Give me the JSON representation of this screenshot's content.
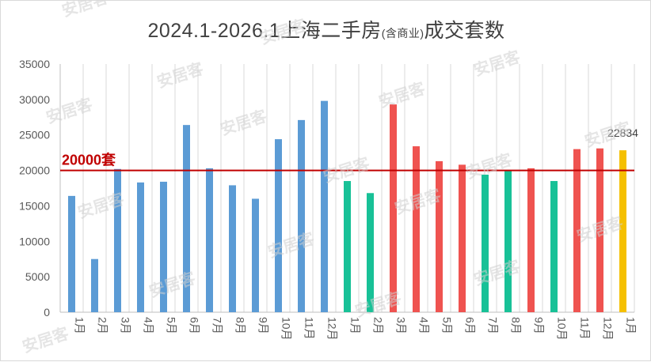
{
  "chart_data": {
    "type": "bar",
    "title_main": "2024.1-2026.1上海二手房",
    "title_small": "(含商业)",
    "title_tail": "成交套数",
    "categories": [
      "1月",
      "2月",
      "3月",
      "4月",
      "5月",
      "6月",
      "7月",
      "8月",
      "9月",
      "10月",
      "11月",
      "12月",
      "1月",
      "2月",
      "3月",
      "4月",
      "5月",
      "6月",
      "7月",
      "8月",
      "9月",
      "10月",
      "11月",
      "12月",
      "1月"
    ],
    "values": [
      16400,
      7500,
      20200,
      18300,
      18400,
      26400,
      20300,
      17900,
      16000,
      24400,
      27100,
      29800,
      18500,
      16800,
      29300,
      23400,
      21300,
      20800,
      19400,
      20000,
      20300,
      18500,
      23000,
      23100,
      22834
    ],
    "bar_colors": [
      "#5b9bd5",
      "#5b9bd5",
      "#5b9bd5",
      "#5b9bd5",
      "#5b9bd5",
      "#5b9bd5",
      "#5b9bd5",
      "#5b9bd5",
      "#5b9bd5",
      "#5b9bd5",
      "#5b9bd5",
      "#5b9bd5",
      "#18c197",
      "#18c197",
      "#ef5350",
      "#ef5350",
      "#ef5350",
      "#ef5350",
      "#18c197",
      "#18c197",
      "#ef5350",
      "#18c197",
      "#ef5350",
      "#ef5350",
      "#f5c000"
    ],
    "data_labels": [
      {
        "index": 24,
        "text": "22834"
      }
    ],
    "ylim": [
      0,
      35000
    ],
    "yticks": [
      0,
      5000,
      10000,
      15000,
      20000,
      25000,
      30000,
      35000
    ],
    "reference_line": {
      "value": 20000,
      "label": "20000套",
      "color": "#c00000"
    },
    "grid": "vertical-columns",
    "legend": "none"
  },
  "watermark": "安居客",
  "colors": {
    "axis": "#bfbfbf",
    "grid": "#d9d9d9",
    "text": "#595959"
  }
}
